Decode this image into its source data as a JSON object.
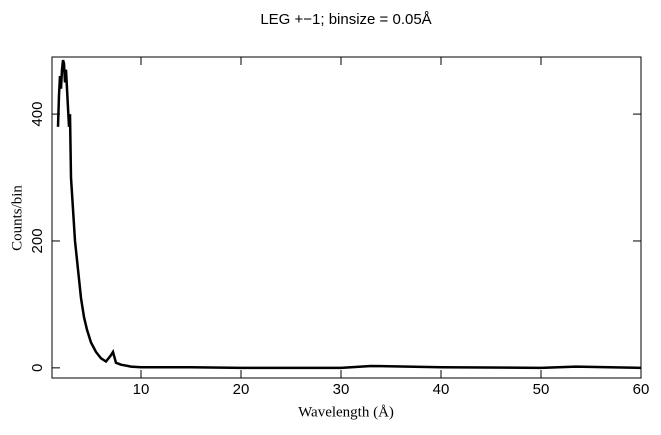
{
  "chart_data": {
    "type": "line",
    "title": "LEG +−1; binsize = 0.05Å",
    "x_label": "Wavelength (Å)",
    "y_label": "Counts/bin",
    "x": [
      1.7,
      1.8,
      1.9,
      2.0,
      2.1,
      2.2,
      2.3,
      2.4,
      2.5,
      2.6,
      2.7,
      2.8,
      2.9,
      3.0,
      3.2,
      3.4,
      3.6,
      3.8,
      4.0,
      4.3,
      4.6,
      5.0,
      5.5,
      6.0,
      6.5,
      7.0,
      7.2,
      7.5,
      8,
      9,
      10,
      15,
      20,
      30,
      33,
      40,
      50,
      53.5,
      60
    ],
    "series": [
      {
        "name": "LEG +−1",
        "color": "#000000",
        "values": [
          380,
          430,
          460,
          440,
          470,
          485,
          480,
          450,
          470,
          440,
          410,
          380,
          400,
          300,
          250,
          200,
          170,
          140,
          110,
          80,
          60,
          40,
          25,
          15,
          10,
          20,
          25,
          8,
          5,
          2,
          1,
          1,
          0,
          0,
          3,
          1,
          0,
          2,
          0
        ]
      }
    ],
    "xlim": [
      1.1,
      60
    ],
    "ylim": [
      -16,
      490
    ],
    "xticks": [
      10,
      20,
      30,
      40,
      50,
      60
    ],
    "yticks": [
      0,
      200,
      400
    ]
  }
}
